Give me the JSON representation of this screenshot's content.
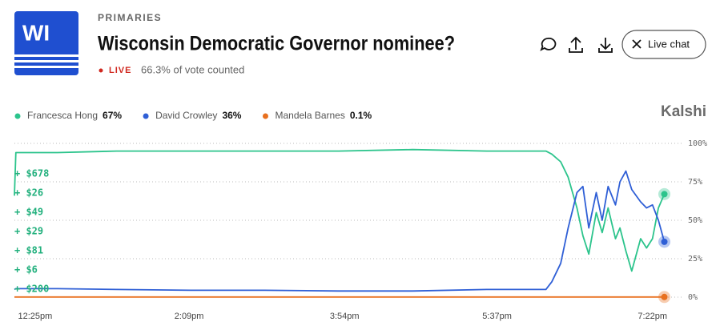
{
  "header": {
    "badge": "WI",
    "category": "PRIMARIES",
    "title": "Wisconsin Democratic Governor nominee?",
    "live": "LIVE",
    "status": "66.3% of vote counted"
  },
  "actions": {
    "live_chat": "Live chat"
  },
  "brand": "Kalshi",
  "trades": [
    "+ $678",
    "+ $26",
    "+ $49",
    "+ $29",
    "+ $81",
    "+ $6",
    "+ $200"
  ],
  "chart_data": {
    "type": "line",
    "x": [
      731,
      732,
      760,
      800,
      850,
      900,
      950,
      1000,
      1050,
      1090,
      1094,
      1100,
      1105,
      1111,
      1115,
      1119,
      1124,
      1128,
      1132,
      1137,
      1140,
      1144,
      1148,
      1154,
      1158,
      1162,
      1166,
      1170
    ],
    "series": [
      {
        "name": "Francesca Hong",
        "current_label": "67%",
        "color": "#2cc48c",
        "values": [
          66,
          94,
          94,
          95,
          95,
          95,
          95,
          96,
          95,
          95,
          93,
          88,
          78,
          58,
          40,
          28,
          55,
          42,
          58,
          38,
          45,
          30,
          17,
          38,
          32,
          38,
          58,
          67
        ]
      },
      {
        "name": "David Crowley",
        "current_label": "36%",
        "color": "#2f5fd6",
        "values": [
          5,
          5.5,
          5.5,
          5,
          4.5,
          4.5,
          4,
          4,
          5,
          5,
          10,
          22,
          45,
          68,
          72,
          45,
          68,
          50,
          72,
          60,
          75,
          82,
          70,
          62,
          58,
          60,
          50,
          36
        ]
      },
      {
        "name": "Mandela Barnes",
        "current_label": "0.1%",
        "color": "#e8701f",
        "values": [
          0.1,
          0.1,
          0.1,
          0.1,
          0.1,
          0.1,
          0.1,
          0.1,
          0.1,
          0.1,
          0.1,
          0.1,
          0.1,
          0.1,
          0.1,
          0.1,
          0.1,
          0.1,
          0.1,
          0.1,
          0.1,
          0.1,
          0.1,
          0.1,
          0.1,
          0.1,
          0.1,
          0.1
        ]
      }
    ],
    "xlim": [
      731,
      1180
    ],
    "xticks": [
      {
        "value": 745,
        "label": "12:25pm"
      },
      {
        "value": 849,
        "label": "2:09pm"
      },
      {
        "value": 954,
        "label": "3:54pm"
      },
      {
        "value": 1057,
        "label": "5:37pm"
      },
      {
        "value": 1162,
        "label": "7:22pm"
      }
    ],
    "ylim": [
      0,
      100
    ],
    "yticks": [
      {
        "value": 0,
        "label": "0%"
      },
      {
        "value": 25,
        "label": "25%"
      },
      {
        "value": 50,
        "label": "50%"
      },
      {
        "value": 75,
        "label": "75%"
      },
      {
        "value": 100,
        "label": "100%"
      }
    ],
    "grid": true
  }
}
